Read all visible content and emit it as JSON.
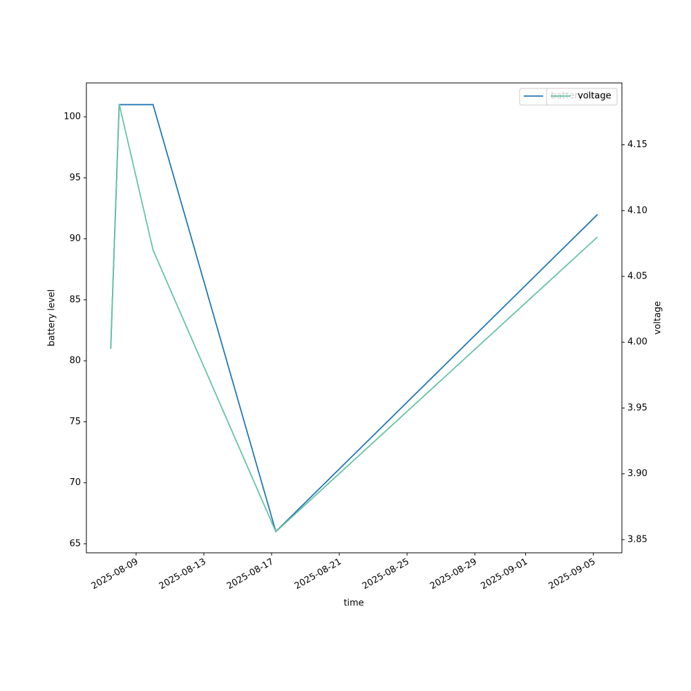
{
  "chart_data": {
    "type": "line",
    "x_label": "time",
    "y_label": "battery level",
    "y2_label": "voltage",
    "x": [
      "2025-08-07T12:00",
      "2025-08-08T00:00",
      "2025-08-10T00:00",
      "2025-08-17T06:00",
      "2025-09-05T06:00"
    ],
    "series": [
      {
        "name": "battery level",
        "color": "#1f77b4",
        "values": [
          81,
          101,
          101,
          66,
          92
        ]
      },
      {
        "name": "voltage",
        "color": "#66c2a5",
        "axis": "y2",
        "values": [
          3.995,
          4.181,
          4.07,
          3.856,
          4.08
        ]
      }
    ],
    "xlim": [
      "2025-08-06T01:30",
      "2025-09-06T16:30"
    ],
    "xticks": [
      "2025-08-09",
      "2025-08-13",
      "2025-08-17",
      "2025-08-21",
      "2025-08-25",
      "2025-08-29",
      "2025-09-01",
      "2025-09-05"
    ],
    "ylim": [
      64.26,
      102.78
    ],
    "yticks": [
      65,
      70,
      75,
      80,
      85,
      90,
      95,
      100
    ],
    "y2lim": [
      3.84,
      4.197
    ],
    "y2ticks": [
      3.85,
      {
        "value": 3.9,
        "label": "3.90"
      },
      3.95,
      {
        "value": 4.0,
        "label": "4.00"
      },
      4.05,
      {
        "value": 4.1,
        "label": "4.10"
      },
      4.15
    ],
    "grid": false
  }
}
